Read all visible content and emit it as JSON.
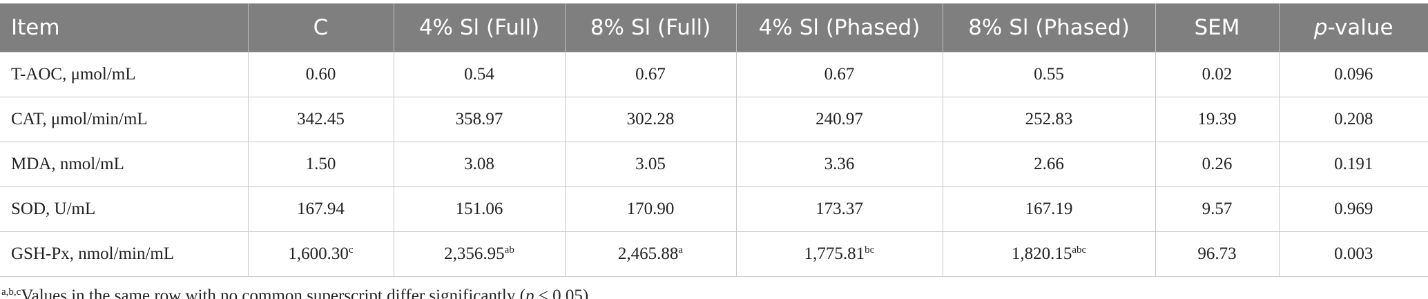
{
  "table": {
    "header": [
      "Item",
      "C",
      "4% Sl (Full)",
      "8% Sl (Full)",
      "4% Sl (Phased)",
      "8% Sl (Phased)",
      "SEM",
      {
        "italic": "p",
        "text": "-value"
      }
    ],
    "rows": [
      [
        "T-AOC, μmol/mL",
        "0.60",
        "0.54",
        "0.67",
        "0.67",
        "0.55",
        "0.02",
        "0.096"
      ],
      [
        "CAT, μmol/min/mL",
        "342.45",
        "358.97",
        "302.28",
        "240.97",
        "252.83",
        "19.39",
        "0.208"
      ],
      [
        "MDA, nmol/mL",
        "1.50",
        "3.08",
        "3.05",
        "3.36",
        "2.66",
        "0.26",
        "0.191"
      ],
      [
        "SOD, U/mL",
        "167.94",
        "151.06",
        "170.90",
        "173.37",
        "167.19",
        "9.57",
        "0.969"
      ],
      [
        "GSH-Px, nmol/min/mL",
        {
          "text": "1,600.30",
          "sup": "c"
        },
        {
          "text": "2,356.95",
          "sup": "ab"
        },
        {
          "text": "2,465.88",
          "sup": "a"
        },
        {
          "text": "1,775.81",
          "sup": "bc"
        },
        {
          "text": "1,820.15",
          "sup": "abc"
        },
        "96.73",
        "0.003"
      ]
    ]
  },
  "footnote": {
    "sup": "a,b,c",
    "text": "Values in the same row with no common superscript differ significantly (",
    "italic": "p",
    "end": " < 0.05)."
  }
}
